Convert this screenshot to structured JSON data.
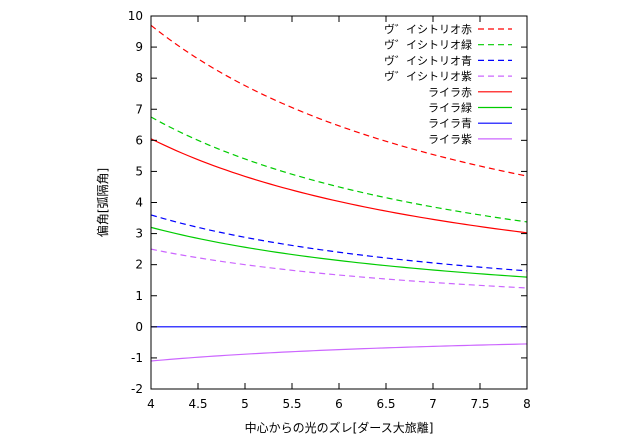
{
  "chart_data": {
    "type": "line",
    "title": "",
    "xlabel": "中心からの光のズレ[ダース大旅離]",
    "ylabel": "偏角[弧隔角]",
    "xlim": [
      4,
      8
    ],
    "ylim": [
      -2,
      10
    ],
    "xticks": [
      4,
      4.5,
      5,
      5.5,
      6,
      6.5,
      7,
      7.5,
      8
    ],
    "xtick_labels": [
      "4",
      "4.5",
      "5",
      "5.5",
      "6",
      "6.5",
      "7",
      "7.5",
      "8"
    ],
    "yticks": [
      -2,
      -1,
      0,
      1,
      2,
      3,
      4,
      5,
      6,
      7,
      8,
      9,
      10
    ],
    "ytick_labels": [
      "-2",
      "-1",
      "0",
      "1",
      "2",
      "3",
      "4",
      "5",
      "6",
      "7",
      "8",
      "9",
      "10"
    ],
    "grid": false,
    "legend_position": "top-right",
    "x": [
      4,
      4.5,
      5,
      5.5,
      6,
      6.5,
      7,
      7.5,
      8
    ],
    "series": [
      {
        "name": "ヴ゛イシトリオ赤",
        "color": "#ff0000",
        "dash": "dashed",
        "values": [
          9.7,
          8.62,
          7.76,
          7.05,
          6.47,
          5.97,
          5.54,
          5.17,
          4.85
        ]
      },
      {
        "name": "ヴ゛イシトリオ緑",
        "color": "#00cc00",
        "dash": "dashed",
        "values": [
          6.75,
          6.0,
          5.4,
          4.91,
          4.5,
          4.15,
          3.86,
          3.6,
          3.38
        ]
      },
      {
        "name": "ヴ゛イシトリオ青",
        "color": "#0000ff",
        "dash": "dashed",
        "values": [
          3.6,
          3.2,
          2.88,
          2.62,
          2.4,
          2.22,
          2.06,
          1.92,
          1.8
        ]
      },
      {
        "name": "ヴ゛イシトリオ紫",
        "color": "#cc66ff",
        "dash": "dashed",
        "values": [
          2.5,
          2.22,
          2.0,
          1.82,
          1.67,
          1.54,
          1.43,
          1.33,
          1.25
        ]
      },
      {
        "name": "ライラ赤",
        "color": "#ff0000",
        "dash": "solid",
        "values": [
          6.05,
          5.38,
          4.84,
          4.4,
          4.03,
          3.72,
          3.46,
          3.23,
          3.03
        ]
      },
      {
        "name": "ライラ緑",
        "color": "#00cc00",
        "dash": "solid",
        "values": [
          3.2,
          2.84,
          2.56,
          2.33,
          2.13,
          1.97,
          1.83,
          1.71,
          1.6
        ]
      },
      {
        "name": "ライラ青",
        "color": "#0000ff",
        "dash": "solid",
        "values": [
          0,
          0,
          0,
          0,
          0,
          0,
          0,
          0,
          0
        ]
      },
      {
        "name": "ライラ紫",
        "color": "#cc66ff",
        "dash": "solid",
        "values": [
          -1.1,
          -0.98,
          -0.88,
          -0.8,
          -0.73,
          -0.68,
          -0.63,
          -0.59,
          -0.55
        ]
      }
    ]
  }
}
